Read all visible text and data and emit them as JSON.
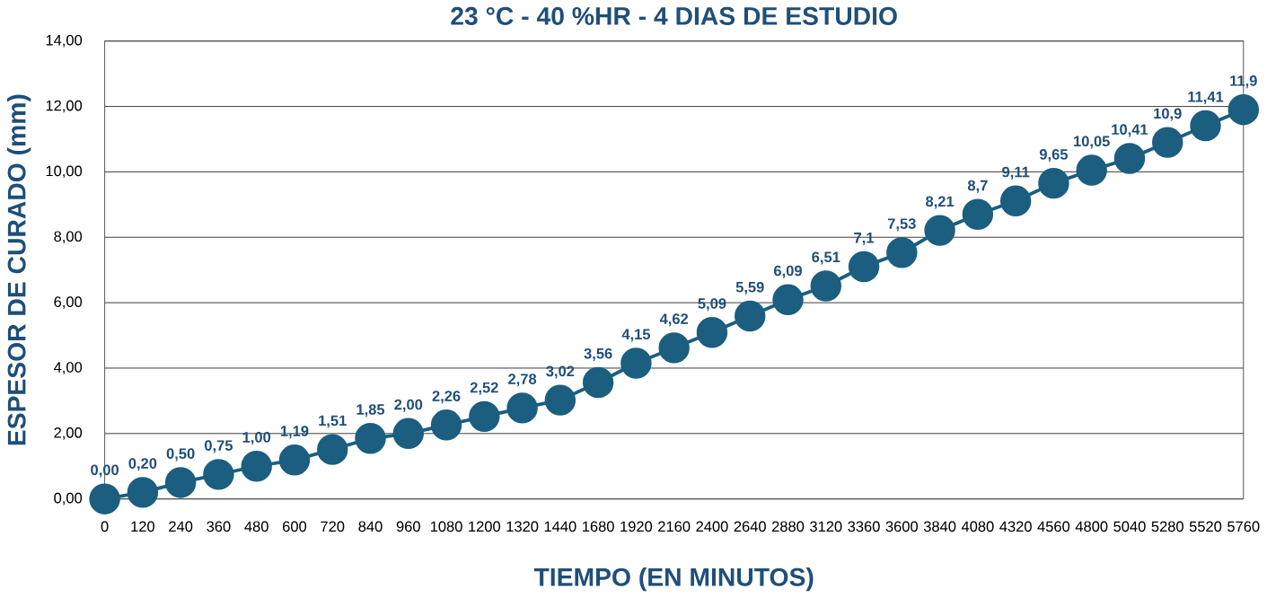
{
  "chart_data": {
    "type": "line",
    "title": "23 °C - 40 %HR - 4 DIAS DE ESTUDIO",
    "xlabel": "TIEMPO (EN MINUTOS)",
    "ylabel": "ESPESOR DE CURADO (mm)",
    "categories": [
      "0",
      "120",
      "240",
      "360",
      "480",
      "600",
      "720",
      "840",
      "960",
      "1080",
      "1200",
      "1320",
      "1440",
      "1680",
      "1920",
      "2160",
      "2400",
      "2640",
      "2880",
      "3120",
      "3360",
      "3600",
      "3840",
      "4080",
      "4320",
      "4560",
      "4800",
      "5040",
      "5280",
      "5520",
      "5760"
    ],
    "series": [
      {
        "color": "#1b5e80",
        "values": [
          0,
          0.2,
          0.5,
          0.75,
          1,
          1.19,
          1.51,
          1.85,
          2,
          2.26,
          2.52,
          2.78,
          3.02,
          3.56,
          4.15,
          4.62,
          5.09,
          5.59,
          6.09,
          6.51,
          7.1,
          7.53,
          8.21,
          8.7,
          9.11,
          9.65,
          10.05,
          10.41,
          10.9,
          11.41,
          11.9
        ],
        "value_labels": [
          "0,00",
          "0,20",
          "0,50",
          "0,75",
          "1,00",
          "1,19",
          "1,51",
          "1,85",
          "2,00",
          "2,26",
          "2,52",
          "2,78",
          "3,02",
          "3,56",
          "4,15",
          "4,62",
          "5,09",
          "5,59",
          "6,09",
          "6,51",
          "7,1",
          "7,53",
          "8,21",
          "8,7",
          "9,11",
          "9,65",
          "10,05",
          "10,41",
          "10,9",
          "11,41",
          "11,9"
        ]
      }
    ],
    "ylim": [
      0,
      14
    ],
    "yticks": [
      {
        "value": 0,
        "label": "0,00"
      },
      {
        "value": 2,
        "label": "2,00"
      },
      {
        "value": 4,
        "label": "4,00"
      },
      {
        "value": 6,
        "label": "6,00"
      },
      {
        "value": 8,
        "label": "8,00"
      },
      {
        "value": 10,
        "label": "10,00"
      },
      {
        "value": 12,
        "label": "12,00"
      },
      {
        "value": 14,
        "label": "14,00"
      }
    ],
    "grid": "y",
    "marker": "circle",
    "line_style": "solid"
  }
}
